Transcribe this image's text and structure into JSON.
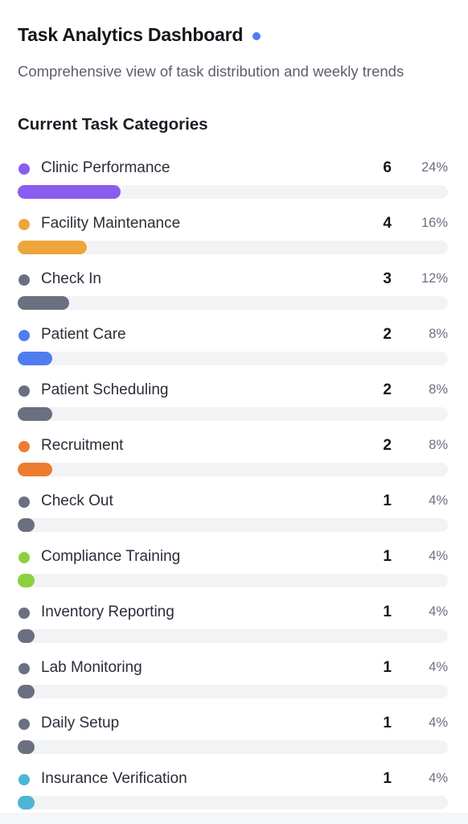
{
  "header": {
    "title": "Task Analytics Dashboard",
    "indicator_color": "#4f7df0",
    "subtitle": "Comprehensive view of task distribution and weekly trends"
  },
  "section": {
    "title": "Current Task Categories"
  },
  "categories": [
    {
      "label": "Clinic Performance",
      "count": "6",
      "percent": "24%",
      "share": 0.24,
      "color": "#8a5cf0"
    },
    {
      "label": "Facility Maintenance",
      "count": "4",
      "percent": "16%",
      "share": 0.16,
      "color": "#eea63c"
    },
    {
      "label": "Check In",
      "count": "3",
      "percent": "12%",
      "share": 0.12,
      "color": "#6b7080"
    },
    {
      "label": "Patient Care",
      "count": "2",
      "percent": "8%",
      "share": 0.08,
      "color": "#4f7df0"
    },
    {
      "label": "Patient Scheduling",
      "count": "2",
      "percent": "8%",
      "share": 0.08,
      "color": "#6b7080"
    },
    {
      "label": "Recruitment",
      "count": "2",
      "percent": "8%",
      "share": 0.08,
      "color": "#ee7c30"
    },
    {
      "label": "Check Out",
      "count": "1",
      "percent": "4%",
      "share": 0.04,
      "color": "#6b7080"
    },
    {
      "label": "Compliance Training",
      "count": "1",
      "percent": "4%",
      "share": 0.04,
      "color": "#8cd040"
    },
    {
      "label": "Inventory Reporting",
      "count": "1",
      "percent": "4%",
      "share": 0.04,
      "color": "#6b7080"
    },
    {
      "label": "Lab Monitoring",
      "count": "1",
      "percent": "4%",
      "share": 0.04,
      "color": "#6b7080"
    },
    {
      "label": "Daily Setup",
      "count": "1",
      "percent": "4%",
      "share": 0.04,
      "color": "#6b7080"
    },
    {
      "label": "Insurance Verification",
      "count": "1",
      "percent": "4%",
      "share": 0.04,
      "color": "#4db6d4"
    }
  ]
}
